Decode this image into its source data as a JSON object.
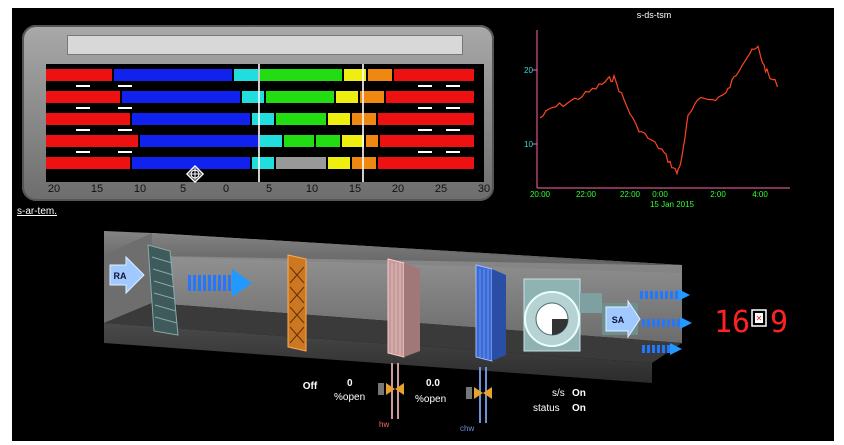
{
  "zone_panel": {
    "axis_labels": [
      "20",
      "15",
      "10",
      "5",
      "0",
      "5",
      "10",
      "15",
      "20",
      "25",
      "30"
    ],
    "colors": {
      "red": "#ee1111",
      "blue": "#1122ee",
      "cyan": "#22dddd",
      "green": "#22dd11",
      "yellow": "#eeee11",
      "orange": "#ee8811",
      "gray": "#999999"
    }
  },
  "trend": {
    "title": "s-ds-tsm",
    "y_ticks": [
      "20",
      "10"
    ],
    "x_ticks": [
      "20:00",
      "22:00",
      "22:00",
      "0:00",
      "2:00",
      "4:00"
    ],
    "date_label": "15 Jan 2015",
    "colors": {
      "line": "#ff4422",
      "axis": "#ff66aa"
    }
  },
  "system": {
    "title": "s-ar-tem.",
    "return_air_label": "RA",
    "supply_air_label": "SA",
    "filter_status": "Off",
    "heating_valve": {
      "value": "0",
      "unit": "%open",
      "tag": "hw"
    },
    "cooling_valve": {
      "value": "0.0",
      "unit": "%open",
      "tag": "chw"
    },
    "fan_ss": {
      "label": "s/s",
      "value": "On"
    },
    "fan_status": {
      "label": "status",
      "value": "On"
    },
    "display_left": "16",
    "display_right": "9"
  }
}
